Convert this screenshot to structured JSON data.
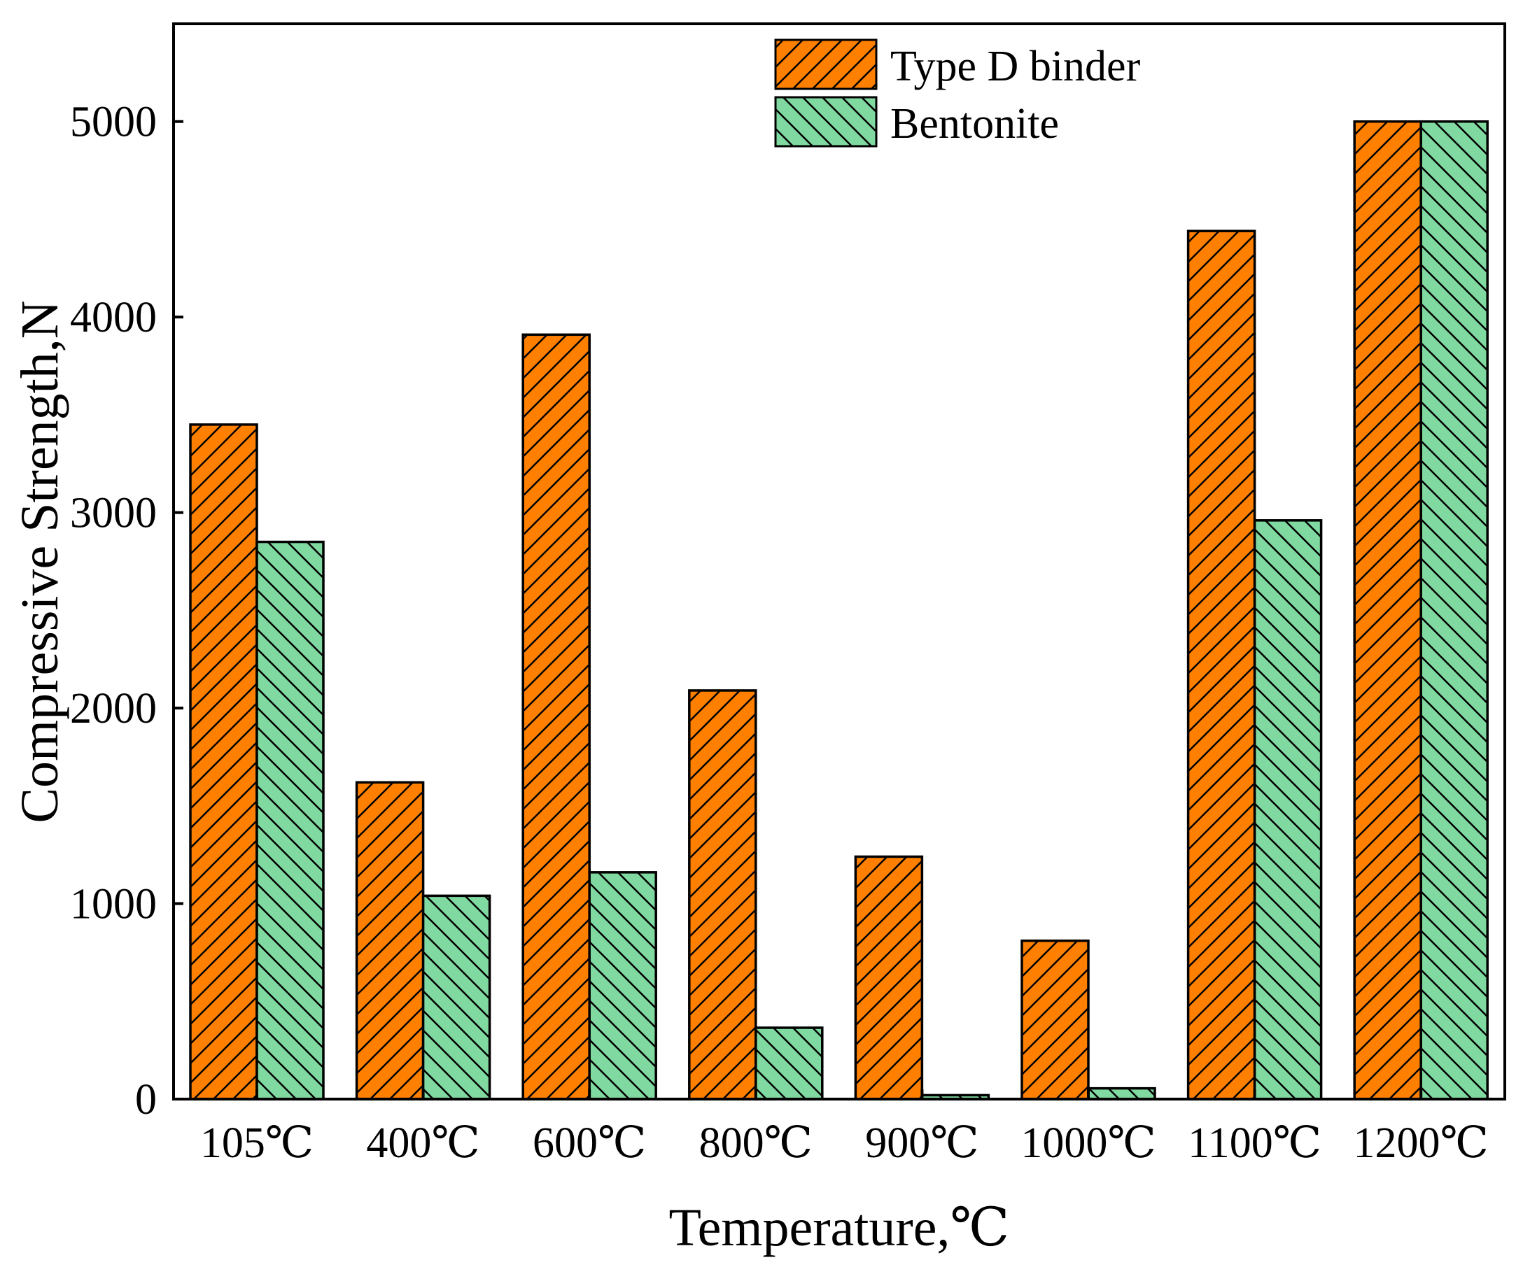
{
  "chart_data": {
    "type": "bar",
    "title": "",
    "xlabel": "Temperature,℃",
    "ylabel": "Compressive Strength,N",
    "ylim": [
      0,
      5500
    ],
    "yticks": [
      0,
      1000,
      2000,
      3000,
      4000,
      5000
    ],
    "ytick_labels": [
      "0",
      "1000",
      "2000",
      "3000",
      "4000",
      "5000"
    ],
    "categories": [
      "105℃",
      "400℃",
      "600℃",
      "800℃",
      "900℃",
      "1000℃",
      "1100℃",
      "1200℃"
    ],
    "grid": false,
    "legend_position": "top-center",
    "series": [
      {
        "name": "Type D binder",
        "color": "#ff8000",
        "hatch": "forward-diagonal",
        "values": [
          3450,
          1620,
          3910,
          2090,
          1240,
          810,
          4440,
          5000
        ]
      },
      {
        "name": "Bentonite",
        "color": "#80d9a0",
        "hatch": "back-diagonal",
        "values": [
          2850,
          1040,
          1160,
          365,
          20,
          55,
          2960,
          5000
        ]
      }
    ]
  }
}
